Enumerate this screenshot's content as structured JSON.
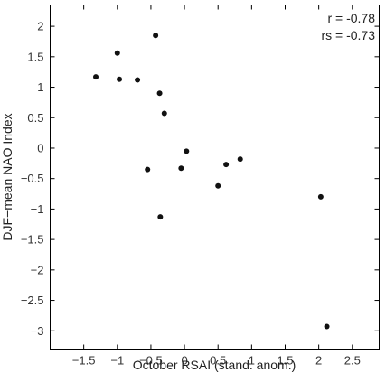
{
  "chart_data": {
    "type": "scatter",
    "xlabel": "October RSAI (stand. anom.)",
    "ylabel": "DJF−mean NAO Index",
    "xlim": [
      -2,
      2.9
    ],
    "ylim": [
      -3.3,
      2.35
    ],
    "xticks": [
      -1.5,
      -1,
      -0.5,
      0,
      0.5,
      1,
      1.5,
      2,
      2.5
    ],
    "xtick_labels": [
      "−1.5",
      "−1",
      "−0.5",
      "0",
      "0.5",
      "1",
      "1.5",
      "2",
      "2.5"
    ],
    "yticks": [
      2,
      1.5,
      1,
      0.5,
      0,
      -0.5,
      -1,
      -1.5,
      -2,
      -2.5,
      -3
    ],
    "ytick_labels": [
      "2",
      "1.5",
      "1",
      "0.5",
      "0",
      "−0.5",
      "−1",
      "−1.5",
      "−2",
      "−2.5",
      "−3"
    ],
    "annotations": [
      "r = -0.78",
      "rs = -0.73"
    ],
    "grid": false,
    "marker_color": "#111111",
    "points": [
      {
        "x": -1.32,
        "y": 1.17
      },
      {
        "x": -1.0,
        "y": 1.56
      },
      {
        "x": -0.97,
        "y": 1.13
      },
      {
        "x": -0.7,
        "y": 1.12
      },
      {
        "x": -0.43,
        "y": 1.85
      },
      {
        "x": -0.37,
        "y": 0.9
      },
      {
        "x": -0.3,
        "y": 0.57
      },
      {
        "x": -0.55,
        "y": -0.35
      },
      {
        "x": -0.36,
        "y": -1.13
      },
      {
        "x": -0.05,
        "y": -0.33
      },
      {
        "x": 0.03,
        "y": -0.05
      },
      {
        "x": 0.5,
        "y": -0.62
      },
      {
        "x": 0.62,
        "y": -0.27
      },
      {
        "x": 0.83,
        "y": -0.18
      },
      {
        "x": 2.03,
        "y": -0.8
      },
      {
        "x": 2.12,
        "y": -2.93
      }
    ]
  }
}
